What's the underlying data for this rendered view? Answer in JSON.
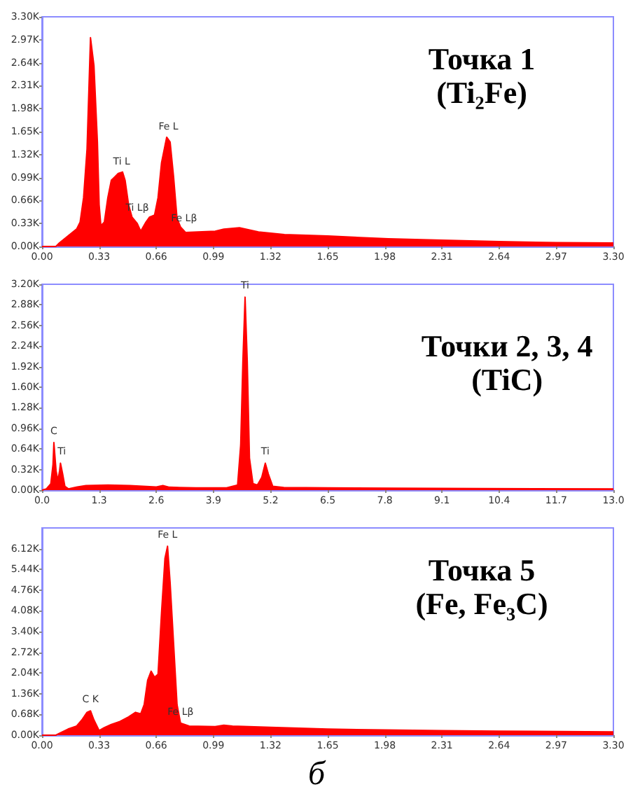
{
  "chart_data": [
    {
      "type": "area",
      "title": "Точка 1",
      "subtitle": "(Ti₂Fe)",
      "marker": "none",
      "x": [
        0,
        0.08,
        0.1,
        0.15,
        0.2,
        0.22,
        0.24,
        0.26,
        0.28,
        0.3,
        0.32,
        0.33,
        0.34,
        0.36,
        0.38,
        0.4,
        0.42,
        0.44,
        0.465,
        0.48,
        0.5,
        0.52,
        0.55,
        0.57,
        0.6,
        0.62,
        0.65,
        0.67,
        0.69,
        0.72,
        0.74,
        0.76,
        0.78,
        0.8,
        0.83,
        0.9,
        1,
        1.05,
        1.14,
        1.25,
        1.4,
        1.65,
        2,
        2.31,
        2.64,
        2.97,
        3.3
      ],
      "series": [
        {
          "color": "#ff0000",
          "values": [
            0,
            0,
            50,
            150,
            250,
            350,
            700,
            1400,
            3000,
            2600,
            1500,
            600,
            300,
            350,
            700,
            950,
            1000,
            1050,
            1070,
            950,
            600,
            420,
            330,
            220,
            350,
            420,
            450,
            700,
            1200,
            1570,
            1500,
            1000,
            400,
            280,
            200,
            210,
            220,
            250,
            270,
            210,
            170,
            150,
            110,
            90,
            70,
            55,
            50
          ]
        }
      ],
      "xlim": [
        0,
        3.3
      ],
      "xticks": [
        {
          "value": 0,
          "label": "0.00"
        },
        0.33,
        0.66,
        0.99,
        1.32,
        1.65,
        1.98,
        2.31,
        2.64,
        2.97,
        {
          "value": 3.3,
          "label": "3.30"
        }
      ],
      "ylim": [
        0,
        3300
      ],
      "yticks": [
        {
          "value": 0,
          "label": "0.00K"
        },
        {
          "value": 330,
          "label": "0.33K"
        },
        {
          "value": 660,
          "label": "0.66K"
        },
        {
          "value": 990,
          "label": "0.99K"
        },
        {
          "value": 1320,
          "label": "1.32K"
        },
        {
          "value": 1650,
          "label": "1.65K"
        },
        {
          "value": 1980,
          "label": "1.98K"
        },
        {
          "value": 2310,
          "label": "2.31K"
        },
        {
          "value": 2640,
          "label": "2.64K"
        },
        {
          "value": 2970,
          "label": "2.97K"
        },
        {
          "value": 3300,
          "label": "3.30K"
        }
      ],
      "annotations": [
        {
          "text": "Ti L",
          "x": 0.46,
          "y": 1150
        },
        {
          "text": "Ti Lβ",
          "x": 0.55,
          "y": 480
        },
        {
          "text": "Fe L",
          "x": 0.73,
          "y": 1650
        },
        {
          "text": "Fe Lβ",
          "x": 0.82,
          "y": 330
        }
      ]
    },
    {
      "type": "area",
      "title": "Точки 2, 3, 4",
      "subtitle": "(TiC)",
      "marker": "none",
      "x": [
        0,
        0.1,
        0.2,
        0.25,
        0.27,
        0.32,
        0.36,
        0.4,
        0.42,
        0.47,
        0.52,
        0.6,
        0.8,
        1,
        1.5,
        2,
        2.6,
        2.75,
        2.9,
        3.5,
        4.2,
        4.45,
        4.52,
        4.57,
        4.62,
        4.67,
        4.72,
        4.8,
        4.9,
        5,
        5.08,
        5.15,
        5.25,
        5.5,
        6.5,
        8,
        10,
        13
      ],
      "series": [
        {
          "color": "#ff0000",
          "values": [
            0,
            20,
            100,
            400,
            740,
            300,
            150,
            300,
            420,
            250,
            60,
            20,
            50,
            70,
            80,
            70,
            50,
            70,
            45,
            35,
            35,
            80,
            700,
            2000,
            3000,
            2000,
            500,
            100,
            80,
            200,
            420,
            250,
            60,
            40,
            35,
            30,
            25,
            20
          ]
        }
      ],
      "xlim": [
        0,
        13
      ],
      "xticks": [
        {
          "value": 0,
          "label": "0.0"
        },
        1.3,
        2.6,
        3.9,
        5.2,
        6.5,
        7.8,
        9.1,
        10.4,
        11.7,
        {
          "value": 13,
          "label": "13.0"
        }
      ],
      "ylim": [
        0,
        3200
      ],
      "yticks": [
        {
          "value": 0,
          "label": "0.00K"
        },
        {
          "value": 320,
          "label": "0.32K"
        },
        {
          "value": 640,
          "label": "0.64K"
        },
        {
          "value": 960,
          "label": "0.96K"
        },
        {
          "value": 1280,
          "label": "1.28K"
        },
        {
          "value": 1600,
          "label": "1.60K"
        },
        {
          "value": 1920,
          "label": "1.92K"
        },
        {
          "value": 2240,
          "label": "2.24K"
        },
        {
          "value": 2560,
          "label": "2.56K"
        },
        {
          "value": 2880,
          "label": "2.88K"
        },
        {
          "value": 3200,
          "label": "3.20K"
        }
      ],
      "annotations": [
        {
          "text": "C",
          "x": 0.27,
          "y": 840
        },
        {
          "text": "Ti",
          "x": 0.45,
          "y": 520
        },
        {
          "text": "Ti",
          "x": 4.62,
          "y": 3100
        },
        {
          "text": "Ti",
          "x": 5.08,
          "y": 520
        }
      ]
    },
    {
      "type": "area",
      "title": "Точка 5",
      "subtitle": "(Fe, Fe₃C)",
      "marker": "none",
      "x": [
        0,
        0.08,
        0.1,
        0.15,
        0.2,
        0.23,
        0.26,
        0.28,
        0.3,
        0.33,
        0.36,
        0.4,
        0.45,
        0.5,
        0.54,
        0.57,
        0.59,
        0.61,
        0.63,
        0.65,
        0.67,
        0.69,
        0.71,
        0.725,
        0.74,
        0.76,
        0.78,
        0.8,
        0.85,
        1,
        1.05,
        1.1,
        1.32,
        1.65,
        1.98,
        2.31,
        2.64,
        3.3
      ],
      "series": [
        {
          "color": "#ff0000",
          "values": [
            0,
            0,
            60,
            200,
            300,
            500,
            750,
            800,
            500,
            150,
            250,
            350,
            450,
            600,
            750,
            700,
            1000,
            1800,
            2100,
            1900,
            2000,
            4000,
            5800,
            6200,
            5000,
            3000,
            1000,
            400,
            300,
            280,
            330,
            300,
            260,
            200,
            170,
            150,
            130,
            110
          ]
        }
      ],
      "xlim": [
        0,
        3.3
      ],
      "xticks": [
        {
          "value": 0,
          "label": "0.00"
        },
        0.33,
        0.66,
        0.99,
        1.32,
        1.65,
        1.98,
        2.31,
        2.64,
        2.97,
        {
          "value": 3.3,
          "label": "3.30"
        }
      ],
      "ylim": [
        0,
        6800
      ],
      "yticks": [
        {
          "value": 0,
          "label": "0.00K"
        },
        {
          "value": 680,
          "label": "0.68K"
        },
        {
          "value": 1360,
          "label": "1.36K"
        },
        {
          "value": 2040,
          "label": "2.04K"
        },
        {
          "value": 2720,
          "label": "2.72K"
        },
        {
          "value": 3400,
          "label": "3.40K"
        },
        {
          "value": 4080,
          "label": "4.08K"
        },
        {
          "value": 4760,
          "label": "4.76K"
        },
        {
          "value": 5440,
          "label": "5.44K"
        },
        {
          "value": 6120,
          "label": "6.12K"
        }
      ],
      "annotations": [
        {
          "text": "C K",
          "x": 0.28,
          "y": 1000
        },
        {
          "text": "Fe L",
          "x": 0.725,
          "y": 6400
        },
        {
          "text": "Fe Lβ",
          "x": 0.8,
          "y": 600
        },
        "б"
      ]
    }
  ]
}
